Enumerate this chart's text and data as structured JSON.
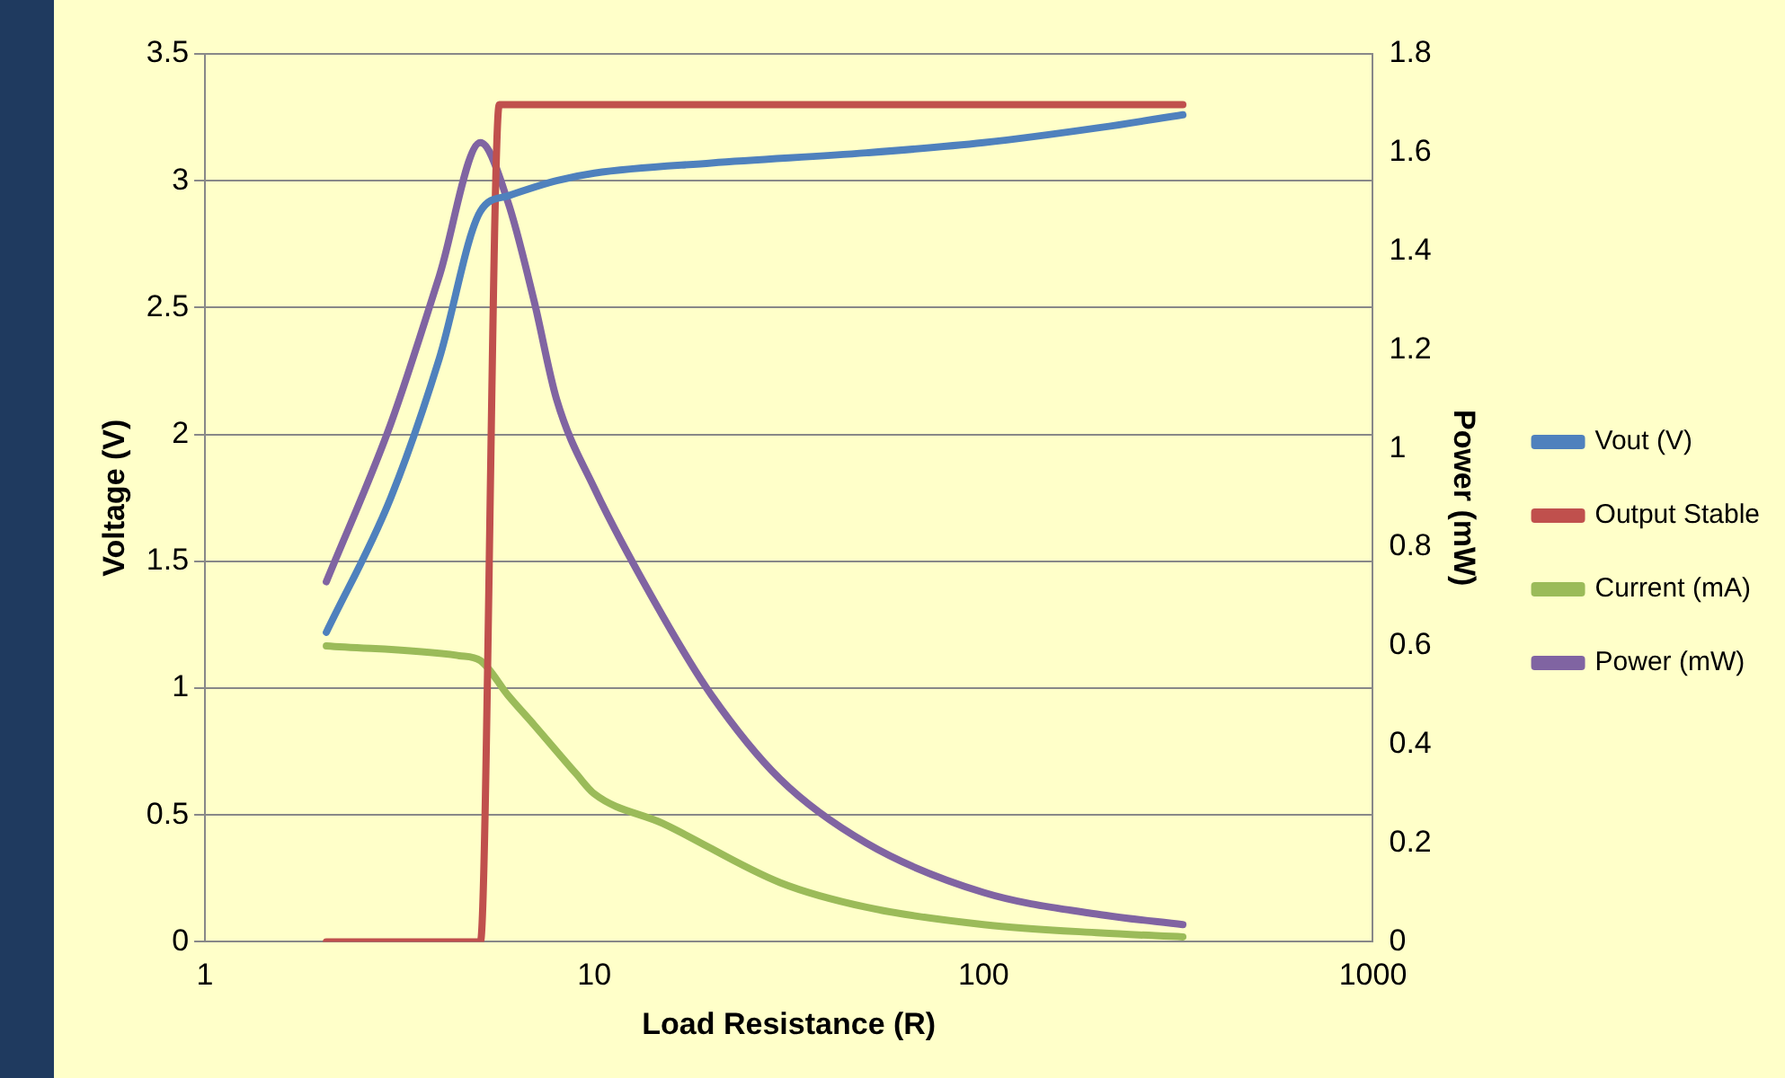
{
  "chart_data": {
    "type": "line",
    "xlabel": "Load Resistance (R)",
    "ylabel": "Voltage (V)",
    "y2label": "Power (mW)",
    "log": "x",
    "grid": "y",
    "legend": "right",
    "marker": "none",
    "line_style": "solid",
    "xlim": [
      1,
      1000
    ],
    "xticks": [
      1,
      10,
      100,
      1000
    ],
    "ylim": [
      0,
      3.5
    ],
    "yticks": [
      0,
      0.5,
      1,
      1.5,
      2,
      2.5,
      3,
      3.5
    ],
    "y2lim": [
      0,
      1.8
    ],
    "y2ticks": [
      0,
      0.2,
      0.4,
      0.6,
      0.8,
      1,
      1.2,
      1.4,
      1.6,
      1.8
    ],
    "series": [
      {
        "name": "Vout (V)",
        "color": "#4f81bd",
        "x": [
          2.05,
          3,
          4,
          5.1,
          6,
          8,
          10,
          20,
          50,
          100,
          200,
          325
        ],
        "values": [
          1.22,
          1.75,
          2.3,
          2.88,
          2.94,
          3.0,
          3.03,
          3.07,
          3.11,
          3.15,
          3.21,
          3.26
        ]
      },
      {
        "name": "Output Stable",
        "color": "#c0504d",
        "x": [
          2.05,
          5.1,
          5.7,
          325
        ],
        "values": [
          0,
          0,
          3.3,
          3.3
        ]
      },
      {
        "name": "Current (mA)",
        "color": "#9bbb59",
        "axis": "y2",
        "x": [
          2.05,
          4.5,
          5.1,
          6,
          7,
          9,
          10,
          15,
          30,
          50,
          100,
          200,
          325
        ],
        "values": [
          0.6,
          0.58,
          0.57,
          0.5,
          0.44,
          0.34,
          0.3,
          0.24,
          0.12,
          0.07,
          0.035,
          0.018,
          0.01
        ]
      },
      {
        "name": "Power (mW)",
        "color": "#8064a2",
        "axis": "y2",
        "x": [
          2.05,
          3,
          4,
          5.1,
          6,
          7,
          8,
          10,
          15,
          20,
          30,
          50,
          100,
          200,
          325
        ],
        "values": [
          0.73,
          1.05,
          1.35,
          1.62,
          1.5,
          1.3,
          1.1,
          0.92,
          0.66,
          0.5,
          0.33,
          0.2,
          0.1,
          0.055,
          0.035
        ]
      }
    ]
  }
}
